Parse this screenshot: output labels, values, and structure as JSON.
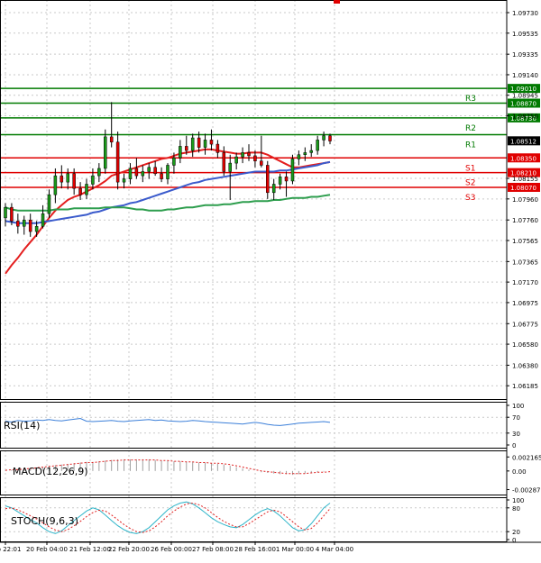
{
  "chart_data": [
    {
      "type": "candlestick",
      "panel": "price",
      "x_tick_labels": [
        "Feb 22:01",
        "20 Feb 04:00",
        "21 Feb 12:00",
        "22 Feb 20:00",
        "26 Feb 00:00",
        "27 Feb 08:00",
        "28 Feb 16:00",
        "1 Mar 00:00",
        "4 Mar 04:00"
      ],
      "ylim": [
        1.0605,
        1.0985
      ],
      "y_tick_labels": [
        "1.09730",
        "1.09535",
        "1.09335",
        "1.09140",
        "1.08945",
        "1.08750",
        "1.08155",
        "1.07960",
        "1.07760",
        "1.07565",
        "1.07365",
        "1.07170",
        "1.06975",
        "1.06775",
        "1.06580",
        "1.06380",
        "1.06185"
      ],
      "levels": [
        {
          "name": "R3",
          "value": 1.0901,
          "label": "1.09010",
          "color": "#007a00"
        },
        {
          "name": "",
          "value": 1.0887,
          "label": "1.08870",
          "color": "#007a00"
        },
        {
          "name": "R2",
          "value": 1.0873,
          "label": "1.08730",
          "color": "#007a00"
        },
        {
          "name": "R1",
          "value": 1.0857,
          "label": "",
          "color": "#007a00"
        },
        {
          "name": "S1",
          "value": 1.0835,
          "label": "1.08350",
          "color": "#e00000"
        },
        {
          "name": "S2",
          "value": 1.0821,
          "label": "1.08210",
          "color": "#e00000"
        },
        {
          "name": "S3",
          "value": 1.0807,
          "label": "1.08070",
          "color": "#e00000"
        }
      ],
      "current_price": {
        "value": 1.08512,
        "label": "1.08512"
      },
      "candles": [
        {
          "o": 1.0778,
          "h": 1.0792,
          "l": 1.077,
          "c": 1.0788
        },
        {
          "o": 1.0788,
          "h": 1.0792,
          "l": 1.0771,
          "c": 1.0775
        },
        {
          "o": 1.0775,
          "h": 1.0782,
          "l": 1.0763,
          "c": 1.077
        },
        {
          "o": 1.077,
          "h": 1.078,
          "l": 1.0762,
          "c": 1.0776
        },
        {
          "o": 1.0776,
          "h": 1.0782,
          "l": 1.076,
          "c": 1.0765
        },
        {
          "o": 1.0765,
          "h": 1.0775,
          "l": 1.076,
          "c": 1.077
        },
        {
          "o": 1.077,
          "h": 1.079,
          "l": 1.0768,
          "c": 1.0782
        },
        {
          "o": 1.0782,
          "h": 1.0805,
          "l": 1.0778,
          "c": 1.08
        },
        {
          "o": 1.08,
          "h": 1.0825,
          "l": 1.0792,
          "c": 1.0818
        },
        {
          "o": 1.0818,
          "h": 1.0828,
          "l": 1.0806,
          "c": 1.0812
        },
        {
          "o": 1.0812,
          "h": 1.0825,
          "l": 1.0805,
          "c": 1.082
        },
        {
          "o": 1.082,
          "h": 1.0825,
          "l": 1.08,
          "c": 1.0806
        },
        {
          "o": 1.0806,
          "h": 1.0812,
          "l": 1.0795,
          "c": 1.08
        },
        {
          "o": 1.08,
          "h": 1.0815,
          "l": 1.0796,
          "c": 1.081
        },
        {
          "o": 1.081,
          "h": 1.0825,
          "l": 1.0805,
          "c": 1.0818
        },
        {
          "o": 1.0818,
          "h": 1.083,
          "l": 1.0812,
          "c": 1.0825
        },
        {
          "o": 1.0825,
          "h": 1.0862,
          "l": 1.082,
          "c": 1.0855
        },
        {
          "o": 1.0855,
          "h": 1.0888,
          "l": 1.0845,
          "c": 1.085
        },
        {
          "o": 1.085,
          "h": 1.086,
          "l": 1.0805,
          "c": 1.0812
        },
        {
          "o": 1.0812,
          "h": 1.082,
          "l": 1.0806,
          "c": 1.0815
        },
        {
          "o": 1.0815,
          "h": 1.083,
          "l": 1.081,
          "c": 1.0825
        },
        {
          "o": 1.0825,
          "h": 1.0835,
          "l": 1.0815,
          "c": 1.0818
        },
        {
          "o": 1.0818,
          "h": 1.0828,
          "l": 1.0812,
          "c": 1.0822
        },
        {
          "o": 1.0822,
          "h": 1.083,
          "l": 1.0815,
          "c": 1.0826
        },
        {
          "o": 1.0826,
          "h": 1.0832,
          "l": 1.0818,
          "c": 1.082
        },
        {
          "o": 1.082,
          "h": 1.0826,
          "l": 1.0812,
          "c": 1.0815
        },
        {
          "o": 1.0815,
          "h": 1.083,
          "l": 1.081,
          "c": 1.0828
        },
        {
          "o": 1.0828,
          "h": 1.084,
          "l": 1.082,
          "c": 1.0835
        },
        {
          "o": 1.0835,
          "h": 1.0852,
          "l": 1.083,
          "c": 1.0846
        },
        {
          "o": 1.0846,
          "h": 1.0856,
          "l": 1.0838,
          "c": 1.0842
        },
        {
          "o": 1.0842,
          "h": 1.0858,
          "l": 1.0836,
          "c": 1.0854
        },
        {
          "o": 1.0854,
          "h": 1.086,
          "l": 1.084,
          "c": 1.0845
        },
        {
          "o": 1.0845,
          "h": 1.0858,
          "l": 1.0838,
          "c": 1.0852
        },
        {
          "o": 1.0852,
          "h": 1.0862,
          "l": 1.0842,
          "c": 1.0848
        },
        {
          "o": 1.0848,
          "h": 1.0852,
          "l": 1.0835,
          "c": 1.084
        },
        {
          "o": 1.084,
          "h": 1.0846,
          "l": 1.0818,
          "c": 1.0822
        },
        {
          "o": 1.0822,
          "h": 1.0838,
          "l": 1.0795,
          "c": 1.083
        },
        {
          "o": 1.083,
          "h": 1.084,
          "l": 1.0824,
          "c": 1.0836
        },
        {
          "o": 1.0836,
          "h": 1.0845,
          "l": 1.083,
          "c": 1.084
        },
        {
          "o": 1.084,
          "h": 1.0848,
          "l": 1.0832,
          "c": 1.0837
        },
        {
          "o": 1.0837,
          "h": 1.0842,
          "l": 1.0826,
          "c": 1.0832
        },
        {
          "o": 1.0832,
          "h": 1.0856,
          "l": 1.0826,
          "c": 1.0828
        },
        {
          "o": 1.0828,
          "h": 1.0832,
          "l": 1.0796,
          "c": 1.0802
        },
        {
          "o": 1.0802,
          "h": 1.0815,
          "l": 1.0795,
          "c": 1.081
        },
        {
          "o": 1.081,
          "h": 1.082,
          "l": 1.0805,
          "c": 1.0817
        },
        {
          "o": 1.0817,
          "h": 1.0822,
          "l": 1.0798,
          "c": 1.0813
        },
        {
          "o": 1.0813,
          "h": 1.0838,
          "l": 1.081,
          "c": 1.0834
        },
        {
          "o": 1.0834,
          "h": 1.0842,
          "l": 1.0828,
          "c": 1.0838
        },
        {
          "o": 1.0838,
          "h": 1.0845,
          "l": 1.0832,
          "c": 1.084
        },
        {
          "o": 1.084,
          "h": 1.0848,
          "l": 1.0836,
          "c": 1.0842
        },
        {
          "o": 1.0842,
          "h": 1.0856,
          "l": 1.0838,
          "c": 1.0852
        },
        {
          "o": 1.0852,
          "h": 1.086,
          "l": 1.0846,
          "c": 1.0856
        },
        {
          "o": 1.0856,
          "h": 1.0858,
          "l": 1.0848,
          "c": 1.0851
        }
      ],
      "moving_averages": [
        {
          "color": "#e41e1e",
          "values": [
            1.0725,
            1.0733,
            1.074,
            1.0748,
            1.0755,
            1.0762,
            1.077,
            1.0778,
            1.0785,
            1.079,
            1.0795,
            1.0798,
            1.08,
            1.0803,
            1.0806,
            1.0809,
            1.0813,
            1.0818,
            1.082,
            1.0822,
            1.0824,
            1.0826,
            1.0828,
            1.083,
            1.0832,
            1.0834,
            1.0835,
            1.0837,
            1.0839,
            1.084,
            1.0841,
            1.0842,
            1.0843,
            1.0843,
            1.0842,
            1.0841,
            1.084,
            1.0839,
            1.0839,
            1.084,
            1.084,
            1.084,
            1.0838,
            1.0835,
            1.0832,
            1.0829,
            1.0826,
            1.0826,
            1.0827,
            1.0828,
            1.0829,
            1.083,
            1.0831
          ]
        },
        {
          "color": "#3b5bcc",
          "values": [
            1.0775,
            1.0774,
            1.0773,
            1.0773,
            1.0773,
            1.0773,
            1.0774,
            1.0775,
            1.0776,
            1.0777,
            1.0778,
            1.0779,
            1.078,
            1.0781,
            1.0783,
            1.0784,
            1.0786,
            1.0788,
            1.0789,
            1.079,
            1.0792,
            1.0793,
            1.0795,
            1.0797,
            1.0799,
            1.0801,
            1.0803,
            1.0805,
            1.0807,
            1.0809,
            1.0811,
            1.0812,
            1.0814,
            1.0815,
            1.0816,
            1.0817,
            1.0818,
            1.0819,
            1.082,
            1.0821,
            1.0822,
            1.0822,
            1.0822,
            1.0822,
            1.0823,
            1.0823,
            1.0824,
            1.0825,
            1.0826,
            1.0827,
            1.0828,
            1.083,
            1.0831
          ]
        },
        {
          "color": "#2e9e4e",
          "values": [
            1.0788,
            1.0786,
            1.0785,
            1.0785,
            1.0785,
            1.0785,
            1.0785,
            1.0785,
            1.0786,
            1.0786,
            1.0786,
            1.0787,
            1.0787,
            1.0787,
            1.0787,
            1.0787,
            1.0788,
            1.0788,
            1.0788,
            1.0788,
            1.0787,
            1.0786,
            1.0786,
            1.0785,
            1.0785,
            1.0785,
            1.0786,
            1.0786,
            1.0787,
            1.0788,
            1.0788,
            1.0789,
            1.079,
            1.079,
            1.079,
            1.0791,
            1.0791,
            1.0792,
            1.0793,
            1.0793,
            1.0794,
            1.0794,
            1.0794,
            1.0795,
            1.0795,
            1.0796,
            1.0797,
            1.0797,
            1.0797,
            1.0798,
            1.0798,
            1.0799,
            1.08
          ]
        }
      ]
    },
    {
      "type": "line",
      "panel": "rsi",
      "title": "RSI(14)",
      "ylim": [
        0,
        100
      ],
      "y_tick_labels": [
        "100",
        "70",
        "30",
        "0"
      ],
      "series": [
        {
          "color": "#3b7fd9",
          "values": [
            60,
            58,
            62,
            60,
            61,
            63,
            62,
            64,
            62,
            61,
            63,
            65,
            67,
            60,
            59,
            60,
            61,
            62,
            60,
            59,
            61,
            62,
            63,
            64,
            62,
            63,
            61,
            60,
            59,
            60,
            62,
            61,
            59,
            58,
            57,
            56,
            55,
            54,
            53,
            55,
            57,
            55,
            52,
            50,
            49,
            51,
            53,
            55,
            56,
            57,
            58,
            59,
            57
          ]
        }
      ]
    },
    {
      "type": "bar",
      "panel": "macd",
      "title": "MACD(12,26,9)",
      "ylim": [
        -0.0035,
        0.0029
      ],
      "y_tick_labels": [
        "0.002165",
        "0.00",
        "-0.002879"
      ],
      "bars": [
        0.0001,
        0.0002,
        0.0003,
        0.0003,
        0.0004,
        0.0005,
        0.0006,
        0.0008,
        0.0009,
        0.001,
        0.0011,
        0.0012,
        0.0013,
        0.0014,
        0.0014,
        0.0015,
        0.0016,
        0.0017,
        0.0018,
        0.0018,
        0.0018,
        0.0018,
        0.0018,
        0.0018,
        0.0017,
        0.0016,
        0.0016,
        0.0015,
        0.0015,
        0.0014,
        0.0014,
        0.0013,
        0.0013,
        0.0012,
        0.0011,
        0.001,
        0.0008,
        0.0006,
        0.0004,
        0.0002,
        0.0,
        -0.0002,
        -0.0003,
        -0.0004,
        -0.0005,
        -0.0005,
        -0.0006,
        -0.0005,
        -0.0004,
        -0.0003,
        -0.0002,
        -0.0001,
        0.0
      ],
      "signal": [
        0.0001,
        0.0002,
        0.0002,
        0.0003,
        0.0004,
        0.0005,
        0.0006,
        0.0007,
        0.0008,
        0.0009,
        0.001,
        0.0011,
        0.0012,
        0.0013,
        0.0013,
        0.0014,
        0.0015,
        0.0016,
        0.0016,
        0.0017,
        0.0017,
        0.0017,
        0.0017,
        0.0017,
        0.0017,
        0.0016,
        0.0016,
        0.0015,
        0.0015,
        0.0014,
        0.0014,
        0.0013,
        0.0013,
        0.0012,
        0.0012,
        0.0011,
        0.001,
        0.0008,
        0.0006,
        0.0004,
        0.0002,
        0.0,
        -0.0001,
        -0.0002,
        -0.0003,
        -0.0004,
        -0.0004,
        -0.0004,
        -0.0004,
        -0.0003,
        -0.0002,
        -0.0002,
        -0.0001
      ]
    },
    {
      "type": "line",
      "panel": "stoch",
      "title": "STOCH(9,6,3)",
      "ylim": [
        0,
        100
      ],
      "y_tick_labels": [
        "100",
        "80",
        "20",
        "0"
      ],
      "series": [
        {
          "color": "#2fb5c9",
          "values": [
            85,
            80,
            70,
            60,
            50,
            42,
            30,
            20,
            15,
            22,
            35,
            48,
            60,
            72,
            80,
            75,
            62,
            48,
            35,
            25,
            18,
            15,
            20,
            30,
            45,
            60,
            75,
            85,
            92,
            95,
            90,
            80,
            68,
            55,
            45,
            38,
            32,
            30,
            38,
            50,
            62,
            72,
            78,
            72,
            60,
            45,
            30,
            22,
            25,
            40,
            60,
            80,
            92
          ]
        },
        {
          "color": "#e02020",
          "values": [
            78,
            80,
            75,
            68,
            60,
            52,
            42,
            32,
            24,
            20,
            25,
            35,
            46,
            58,
            68,
            74,
            72,
            62,
            50,
            38,
            28,
            20,
            18,
            22,
            32,
            45,
            60,
            72,
            82,
            90,
            92,
            88,
            80,
            68,
            56,
            46,
            38,
            32,
            32,
            40,
            50,
            60,
            70,
            74,
            70,
            58,
            45,
            32,
            24,
            28,
            42,
            60,
            78
          ]
        }
      ]
    }
  ]
}
